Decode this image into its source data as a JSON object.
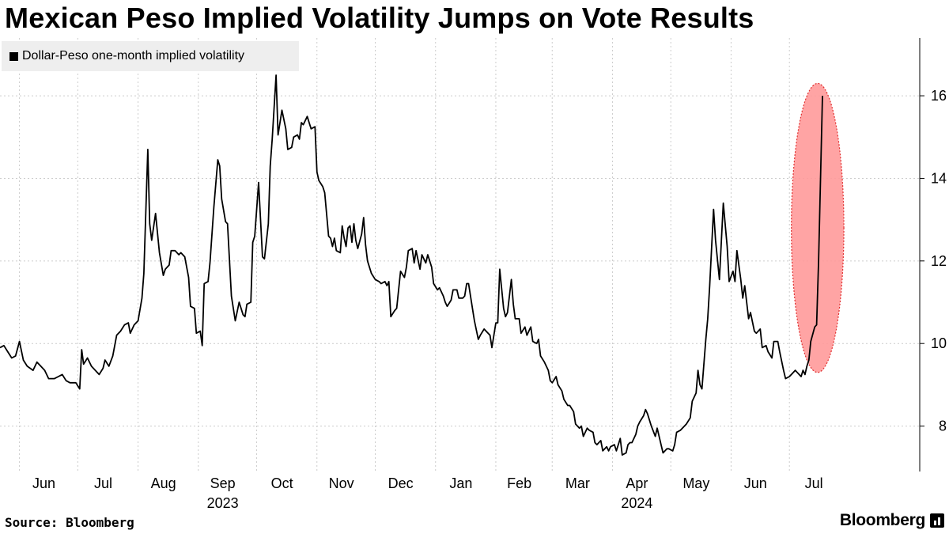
{
  "title": "Mexican Peso Implied Volatility Jumps on Vote Results",
  "source": "Source: Bloomberg",
  "brand": "Bloomberg",
  "colors": {
    "line": "#000000",
    "highlight_fill": "#ff9a9a",
    "highlight_stroke": "#e03030",
    "grid": "#cccccc"
  },
  "chart_data": {
    "type": "line",
    "title": "Mexican Peso Implied Volatility Jumps on Vote Results",
    "ylim": [
      6.9,
      17.4
    ],
    "yticks": [
      8,
      10,
      12,
      14,
      16
    ],
    "y_axis_side": "right",
    "grid": true,
    "legend": "top-left",
    "month_ticks": [
      {
        "label": "Jun",
        "x": 0
      },
      {
        "label": "Jul",
        "x": 30
      },
      {
        "label": "Aug",
        "x": 61
      },
      {
        "label": "Sep",
        "x": 92
      },
      {
        "label": "Oct",
        "x": 122
      },
      {
        "label": "Nov",
        "x": 153
      },
      {
        "label": "Dec",
        "x": 183
      },
      {
        "label": "Jan",
        "x": 214
      },
      {
        "label": "Feb",
        "x": 245
      },
      {
        "label": "Mar",
        "x": 274
      },
      {
        "label": "Apr",
        "x": 305
      },
      {
        "label": "May",
        "x": 335
      },
      {
        "label": "Jun",
        "x": 366
      },
      {
        "label": "Jul",
        "x": 396
      }
    ],
    "year_labels": [
      {
        "label": "2023",
        "x": 92
      },
      {
        "label": "2024",
        "x": 305
      }
    ],
    "x_domain": [
      -10,
      413
    ],
    "series": [
      {
        "name": "Dollar-Peso one-month implied volatility",
        "points": [
          [
            -10,
            9.9
          ],
          [
            -8,
            9.95
          ],
          [
            -6,
            9.8
          ],
          [
            -4,
            9.65
          ],
          [
            -2,
            9.7
          ],
          [
            0,
            10.05
          ],
          [
            2,
            9.6
          ],
          [
            4,
            9.45
          ],
          [
            7,
            9.35
          ],
          [
            9,
            9.55
          ],
          [
            11,
            9.45
          ],
          [
            13,
            9.35
          ],
          [
            15,
            9.15
          ],
          [
            18,
            9.15
          ],
          [
            20,
            9.2
          ],
          [
            22,
            9.25
          ],
          [
            24,
            9.1
          ],
          [
            26,
            9.05
          ],
          [
            29,
            9.05
          ],
          [
            31,
            8.9
          ],
          [
            32,
            9.85
          ],
          [
            33,
            9.5
          ],
          [
            35,
            9.65
          ],
          [
            37,
            9.45
          ],
          [
            39,
            9.35
          ],
          [
            41,
            9.25
          ],
          [
            43,
            9.4
          ],
          [
            44,
            9.6
          ],
          [
            46,
            9.45
          ],
          [
            48,
            9.7
          ],
          [
            50,
            10.2
          ],
          [
            52,
            10.3
          ],
          [
            54,
            10.45
          ],
          [
            56,
            10.5
          ],
          [
            57,
            10.25
          ],
          [
            59,
            10.45
          ],
          [
            61,
            10.55
          ],
          [
            63,
            11.1
          ],
          [
            64,
            11.7
          ],
          [
            66,
            14.7
          ],
          [
            67,
            12.9
          ],
          [
            68,
            12.5
          ],
          [
            70,
            13.15
          ],
          [
            72,
            12.2
          ],
          [
            74,
            11.65
          ],
          [
            75,
            11.8
          ],
          [
            77,
            11.9
          ],
          [
            78,
            12.25
          ],
          [
            80,
            12.25
          ],
          [
            82,
            12.15
          ],
          [
            83,
            12.2
          ],
          [
            85,
            12.1
          ],
          [
            87,
            11.6
          ],
          [
            88,
            10.9
          ],
          [
            90,
            10.85
          ],
          [
            91,
            10.25
          ],
          [
            93,
            10.3
          ],
          [
            94,
            9.95
          ],
          [
            95,
            11.45
          ],
          [
            97,
            11.5
          ],
          [
            98,
            11.95
          ],
          [
            100,
            13.3
          ],
          [
            102,
            14.45
          ],
          [
            103,
            14.3
          ],
          [
            104,
            13.5
          ],
          [
            106,
            12.95
          ],
          [
            107,
            12.9
          ],
          [
            109,
            11.15
          ],
          [
            111,
            10.55
          ],
          [
            113,
            11.0
          ],
          [
            115,
            10.7
          ],
          [
            116,
            10.65
          ],
          [
            117,
            10.95
          ],
          [
            119,
            11.0
          ],
          [
            120,
            12.45
          ],
          [
            121,
            12.6
          ],
          [
            123,
            13.9
          ],
          [
            125,
            12.1
          ],
          [
            126,
            12.05
          ],
          [
            128,
            12.9
          ],
          [
            129,
            14.3
          ],
          [
            130,
            14.95
          ],
          [
            132,
            16.5
          ],
          [
            133,
            15.05
          ],
          [
            135,
            15.65
          ],
          [
            137,
            15.2
          ],
          [
            138,
            14.7
          ],
          [
            140,
            14.75
          ],
          [
            141,
            15.0
          ],
          [
            143,
            15.05
          ],
          [
            144,
            14.95
          ],
          [
            145,
            15.35
          ],
          [
            146,
            15.3
          ],
          [
            148,
            15.5
          ],
          [
            149,
            15.35
          ],
          [
            150,
            15.2
          ],
          [
            152,
            15.25
          ],
          [
            153,
            14.15
          ],
          [
            154,
            13.95
          ],
          [
            156,
            13.8
          ],
          [
            157,
            13.65
          ],
          [
            159,
            12.6
          ],
          [
            160,
            12.55
          ],
          [
            161,
            12.35
          ],
          [
            162,
            12.55
          ],
          [
            163,
            12.25
          ],
          [
            165,
            12.2
          ],
          [
            166,
            12.85
          ],
          [
            167,
            12.55
          ],
          [
            168,
            12.35
          ],
          [
            169,
            12.8
          ],
          [
            170,
            12.85
          ],
          [
            171,
            12.45
          ],
          [
            172,
            12.9
          ],
          [
            173,
            12.5
          ],
          [
            174,
            12.3
          ],
          [
            176,
            12.65
          ],
          [
            177,
            13.05
          ],
          [
            178,
            12.4
          ],
          [
            179,
            12.0
          ],
          [
            181,
            11.7
          ],
          [
            183,
            11.55
          ],
          [
            185,
            11.5
          ],
          [
            186,
            11.45
          ],
          [
            188,
            11.5
          ],
          [
            189,
            11.4
          ],
          [
            190,
            11.5
          ],
          [
            191,
            10.65
          ],
          [
            193,
            10.8
          ],
          [
            194,
            10.85
          ],
          [
            196,
            11.75
          ],
          [
            198,
            11.6
          ],
          [
            199,
            11.85
          ],
          [
            200,
            12.25
          ],
          [
            202,
            12.3
          ],
          [
            203,
            11.95
          ],
          [
            204,
            12.25
          ],
          [
            206,
            11.8
          ],
          [
            207,
            12.15
          ],
          [
            209,
            11.95
          ],
          [
            210,
            12.15
          ],
          [
            212,
            11.85
          ],
          [
            213,
            11.45
          ],
          [
            215,
            11.3
          ],
          [
            216,
            11.35
          ],
          [
            218,
            11.15
          ],
          [
            219,
            11.0
          ],
          [
            220,
            10.9
          ],
          [
            222,
            11.05
          ],
          [
            223,
            11.3
          ],
          [
            225,
            11.3
          ],
          [
            226,
            11.1
          ],
          [
            228,
            11.1
          ],
          [
            229,
            11.15
          ],
          [
            230,
            11.45
          ],
          [
            231,
            11.45
          ],
          [
            233,
            10.85
          ],
          [
            234,
            10.55
          ],
          [
            236,
            10.1
          ],
          [
            237,
            10.2
          ],
          [
            239,
            10.35
          ],
          [
            240,
            10.3
          ],
          [
            242,
            10.2
          ],
          [
            243,
            9.9
          ],
          [
            245,
            10.5
          ],
          [
            246,
            10.5
          ],
          [
            247,
            11.8
          ],
          [
            249,
            10.85
          ],
          [
            250,
            10.65
          ],
          [
            251,
            10.75
          ],
          [
            253,
            11.55
          ],
          [
            254,
            10.95
          ],
          [
            255,
            10.6
          ],
          [
            257,
            10.6
          ],
          [
            258,
            10.25
          ],
          [
            260,
            10.4
          ],
          [
            261,
            10.2
          ],
          [
            263,
            10.4
          ],
          [
            264,
            10.05
          ],
          [
            266,
            10.0
          ],
          [
            267,
            10.1
          ],
          [
            268,
            9.7
          ],
          [
            270,
            9.55
          ],
          [
            272,
            9.35
          ],
          [
            273,
            9.1
          ],
          [
            274,
            9.05
          ],
          [
            276,
            9.2
          ],
          [
            277,
            9.0
          ],
          [
            279,
            8.85
          ],
          [
            280,
            8.65
          ],
          [
            282,
            8.5
          ],
          [
            283,
            8.5
          ],
          [
            285,
            8.35
          ],
          [
            286,
            8.05
          ],
          [
            288,
            7.95
          ],
          [
            289,
            8.0
          ],
          [
            290,
            7.75
          ],
          [
            292,
            7.95
          ],
          [
            293,
            7.9
          ],
          [
            295,
            7.85
          ],
          [
            296,
            7.6
          ],
          [
            297,
            7.55
          ],
          [
            299,
            7.65
          ],
          [
            300,
            7.4
          ],
          [
            302,
            7.5
          ],
          [
            303,
            7.4
          ],
          [
            304,
            7.5
          ],
          [
            306,
            7.55
          ],
          [
            307,
            7.4
          ],
          [
            309,
            7.7
          ],
          [
            310,
            7.3
          ],
          [
            312,
            7.35
          ],
          [
            313,
            7.55
          ],
          [
            314,
            7.6
          ],
          [
            315,
            7.6
          ],
          [
            317,
            7.8
          ],
          [
            318,
            8.0
          ],
          [
            319,
            8.1
          ],
          [
            321,
            8.25
          ],
          [
            322,
            8.4
          ],
          [
            323,
            8.3
          ],
          [
            325,
            8.0
          ],
          [
            327,
            7.75
          ],
          [
            328,
            7.95
          ],
          [
            330,
            7.55
          ],
          [
            331,
            7.35
          ],
          [
            333,
            7.45
          ],
          [
            334,
            7.45
          ],
          [
            336,
            7.4
          ],
          [
            337,
            7.55
          ],
          [
            338,
            7.85
          ],
          [
            340,
            7.9
          ],
          [
            342,
            8.0
          ],
          [
            343,
            8.05
          ],
          [
            345,
            8.2
          ],
          [
            346,
            8.6
          ],
          [
            348,
            8.8
          ],
          [
            349,
            9.35
          ],
          [
            350,
            9.0
          ],
          [
            351,
            8.9
          ],
          [
            353,
            10.1
          ],
          [
            354,
            10.6
          ],
          [
            355,
            11.4
          ],
          [
            357,
            13.25
          ],
          [
            358,
            12.5
          ],
          [
            360,
            11.55
          ],
          [
            361,
            12.5
          ],
          [
            362,
            13.4
          ],
          [
            364,
            12.35
          ],
          [
            365,
            11.5
          ],
          [
            367,
            11.75
          ],
          [
            368,
            11.5
          ],
          [
            369,
            12.25
          ],
          [
            371,
            11.55
          ],
          [
            372,
            11.1
          ],
          [
            373,
            11.4
          ],
          [
            375,
            10.6
          ],
          [
            376,
            10.75
          ],
          [
            378,
            10.3
          ],
          [
            379,
            10.25
          ],
          [
            381,
            10.35
          ],
          [
            382,
            9.9
          ],
          [
            384,
            9.95
          ],
          [
            385,
            9.8
          ],
          [
            387,
            9.65
          ],
          [
            388,
            10.05
          ],
          [
            390,
            10.05
          ],
          [
            391,
            9.8
          ],
          [
            393,
            9.35
          ],
          [
            394,
            9.15
          ],
          [
            396,
            9.2
          ],
          [
            397,
            9.25
          ],
          [
            399,
            9.35
          ],
          [
            400,
            9.3
          ],
          [
            402,
            9.2
          ],
          [
            403,
            9.35
          ],
          [
            404,
            9.25
          ],
          [
            405,
            9.45
          ],
          [
            406,
            9.6
          ],
          [
            407,
            10.05
          ],
          [
            409,
            10.4
          ],
          [
            410,
            10.45
          ],
          [
            411,
            12.0
          ],
          [
            413,
            16.0
          ]
        ]
      }
    ],
    "annotations": [
      {
        "type": "ellipse-highlight",
        "x_center": 410.5,
        "y_center": 12.8,
        "x_radius": 13.5,
        "y_radius": 3.5
      }
    ]
  }
}
